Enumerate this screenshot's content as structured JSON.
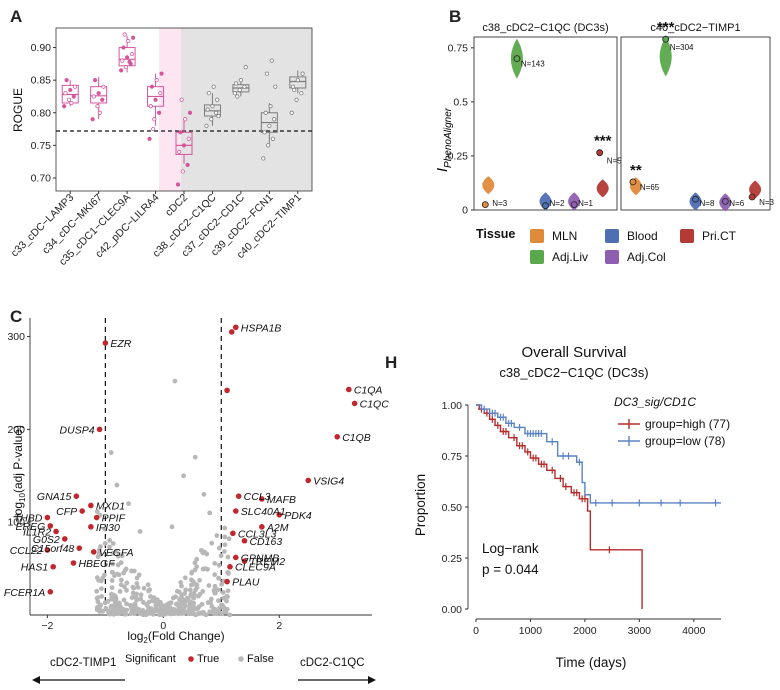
{
  "figure": {
    "panel_labels": [
      "A",
      "B",
      "C",
      "H"
    ]
  },
  "colors": {
    "pink": "#d6569e",
    "pink_shade": "#fde6f1",
    "grey_shade": "#e3e3e3",
    "grey_box": "#7b7b7b",
    "MLN": "#e08a3c",
    "Adj.Liv": "#5aa84b",
    "Blood": "#4f6fb3",
    "Adj.Col": "#8e5fb0",
    "Pri.CT": "#b43a35",
    "volcano_sig": "#c1272d",
    "volcano_ns": "#b7b7b7",
    "surv_high": "#b72b2b",
    "surv_low": "#5b84c4"
  },
  "chart_data": [
    {
      "panel": "A",
      "type": "box",
      "ylabel": "ROGUE",
      "ylim": [
        0.68,
        0.93
      ],
      "yticks": [
        "0.70",
        "0.75",
        "0.80",
        "0.85",
        "0.90"
      ],
      "threshold": 0.772,
      "categories": [
        "c33_cDC−LAMP3",
        "c34_cDC−MKI67",
        "c35_cDC1−CLEC9A",
        "c42_pDC−LILRA4",
        "cDC2",
        "c38_cDC2−C1QC",
        "c37_cDC2−CD1C",
        "c39_cDC2−FCN1",
        "c40_cDC2−TIMP1"
      ],
      "groups": [
        "pink",
        "pink",
        "pink",
        "pink",
        "pink",
        "grey",
        "grey",
        "grey",
        "grey"
      ],
      "boxes": [
        {
          "lo": 0.81,
          "q1": 0.815,
          "med": 0.828,
          "q3": 0.842,
          "hi": 0.85,
          "points": [
            0.81,
            0.82,
            0.825,
            0.83,
            0.835,
            0.84,
            0.85,
            0.815
          ]
        },
        {
          "lo": 0.79,
          "q1": 0.815,
          "med": 0.826,
          "q3": 0.84,
          "hi": 0.855,
          "points": [
            0.79,
            0.81,
            0.82,
            0.825,
            0.83,
            0.84,
            0.85,
            0.8
          ]
        },
        {
          "lo": 0.862,
          "q1": 0.872,
          "med": 0.882,
          "q3": 0.9,
          "hi": 0.918,
          "points": [
            0.865,
            0.87,
            0.875,
            0.88,
            0.885,
            0.89,
            0.9,
            0.91,
            0.915,
            0.92,
            0.878
          ]
        },
        {
          "lo": 0.78,
          "q1": 0.81,
          "med": 0.825,
          "q3": 0.84,
          "hi": 0.86,
          "points": [
            0.76,
            0.79,
            0.8,
            0.81,
            0.82,
            0.83,
            0.84,
            0.85,
            0.86,
            0.775
          ]
        },
        {
          "lo": 0.722,
          "q1": 0.736,
          "med": 0.75,
          "q3": 0.77,
          "hi": 0.79,
          "points": [
            0.69,
            0.71,
            0.72,
            0.74,
            0.75,
            0.76,
            0.77,
            0.79,
            0.8,
            0.82
          ]
        },
        {
          "lo": 0.78,
          "q1": 0.795,
          "med": 0.803,
          "q3": 0.812,
          "hi": 0.83,
          "points": [
            0.78,
            0.79,
            0.8,
            0.805,
            0.81,
            0.82,
            0.83,
            0.84,
            0.795
          ]
        },
        {
          "lo": 0.825,
          "q1": 0.832,
          "med": 0.838,
          "q3": 0.843,
          "hi": 0.85,
          "points": [
            0.83,
            0.835,
            0.84,
            0.845,
            0.85,
            0.87,
            0.825
          ]
        },
        {
          "lo": 0.752,
          "q1": 0.77,
          "med": 0.785,
          "q3": 0.8,
          "hi": 0.815,
          "points": [
            0.73,
            0.75,
            0.76,
            0.77,
            0.78,
            0.79,
            0.8,
            0.81,
            0.84,
            0.86,
            0.88
          ]
        },
        {
          "lo": 0.83,
          "q1": 0.838,
          "med": 0.848,
          "q3": 0.855,
          "hi": 0.865,
          "points": [
            0.8,
            0.82,
            0.83,
            0.84,
            0.85,
            0.86,
            0.835
          ]
        }
      ]
    },
    {
      "panel": "B",
      "type": "violin",
      "ylabel_main": "I",
      "ylabel_sub": "PhenoAligner",
      "ylim": [
        0,
        0.8
      ],
      "yticks": [
        "0",
        "0.25",
        "0.5",
        "0.75"
      ],
      "tissues": [
        "MLN",
        "Adj.Liv",
        "Blood",
        "Adj.Col",
        "Pri.CT"
      ],
      "facets": [
        {
          "title": "c38_cDC2−C1QC (DC3s)",
          "groups": [
            {
              "tissue": "MLN",
              "center": 0.115,
              "n": "N=3",
              "point": 0.025,
              "sig": ""
            },
            {
              "tissue": "Adj.Liv",
              "center": 0.7,
              "n": "N=143",
              "point": 0.7,
              "sig": ""
            },
            {
              "tissue": "Blood",
              "center": 0.04,
              "n": "N=2",
              "point": 0.02,
              "sig": ""
            },
            {
              "tissue": "Adj.Col",
              "center": 0.04,
              "n": "N=1",
              "point": 0.025,
              "sig": ""
            },
            {
              "tissue": "Pri.CT",
              "center": 0.1,
              "n": "N=54",
              "point": 0.265,
              "sig": "***"
            }
          ]
        },
        {
          "title": "c40_cDC2−TIMP1",
          "groups": [
            {
              "tissue": "MLN",
              "center": 0.11,
              "n": "N=65",
              "point": 0.13,
              "sig": "**"
            },
            {
              "tissue": "Adj.Liv",
              "center": 0.71,
              "n": "N=304",
              "point": 0.79,
              "sig": "***"
            },
            {
              "tissue": "Blood",
              "center": 0.04,
              "n": "N=8",
              "point": 0.05,
              "sig": ""
            },
            {
              "tissue": "Adj.Col",
              "center": 0.035,
              "n": "N=6",
              "point": 0.04,
              "sig": ""
            },
            {
              "tissue": "Pri.CT",
              "center": 0.095,
              "n": "N=3",
              "point": 0.06,
              "sig": ""
            }
          ]
        }
      ],
      "legend_title": "Tissue"
    },
    {
      "panel": "C",
      "type": "scatter",
      "xlabel_prefix": "log",
      "xlabel_sub": "2",
      "xlabel_suffix": "(Fold Change)",
      "ylabel_prefix": "−log",
      "ylabel_sub": "10",
      "ylabel_suffix": "(adj P-value)",
      "xlim": [
        -2.3,
        3.6
      ],
      "ylim": [
        0,
        320
      ],
      "xticks": [
        "−2",
        "0",
        "2"
      ],
      "yticks": [
        "100",
        "200",
        "300"
      ],
      "cutoff_x": [
        -1,
        1
      ],
      "legend_title": "Significant",
      "legend_true": "True",
      "legend_false": "False",
      "left_arrow_label": "cDC2-TIMP1",
      "right_arrow_label": "cDC2-C1QC",
      "significant_points": [
        {
          "x": 1.25,
          "y": 310,
          "label": "HSPA1B",
          "side": "r"
        },
        {
          "x": 1.18,
          "y": 305,
          "label": "",
          "side": "r"
        },
        {
          "x": 3.2,
          "y": 243,
          "label": "C1QA",
          "side": "r"
        },
        {
          "x": 3.3,
          "y": 228,
          "label": "C1QC",
          "side": "r"
        },
        {
          "x": 3.0,
          "y": 192,
          "label": "C1QB",
          "side": "r"
        },
        {
          "x": 1.1,
          "y": 242,
          "label": "",
          "side": "r"
        },
        {
          "x": 2.5,
          "y": 145,
          "label": "VSIG4",
          "side": "r"
        },
        {
          "x": 1.3,
          "y": 128,
          "label": "CCL3",
          "side": "r"
        },
        {
          "x": 1.7,
          "y": 125,
          "label": "MAFB",
          "side": "r"
        },
        {
          "x": 1.25,
          "y": 112,
          "label": "SLC40A1",
          "side": "r"
        },
        {
          "x": 2.0,
          "y": 108,
          "label": "PDK4",
          "side": "r"
        },
        {
          "x": 1.7,
          "y": 95,
          "label": "A2M",
          "side": "r"
        },
        {
          "x": 1.2,
          "y": 88,
          "label": "CCL3L3",
          "side": "r"
        },
        {
          "x": 1.4,
          "y": 80,
          "label": "CD163",
          "side": "r"
        },
        {
          "x": 1.25,
          "y": 62,
          "label": "GPNMB",
          "side": "r"
        },
        {
          "x": 1.4,
          "y": 58,
          "label": "TREM2",
          "side": "r"
        },
        {
          "x": 1.15,
          "y": 52,
          "label": "CLEC9A",
          "side": "r"
        },
        {
          "x": 1.1,
          "y": 36,
          "label": "PLAU",
          "side": "r"
        },
        {
          "x": -1.0,
          "y": 293,
          "label": "EZR",
          "side": "r"
        },
        {
          "x": -1.1,
          "y": 200,
          "label": "DUSP4",
          "side": "l"
        },
        {
          "x": -1.5,
          "y": 128,
          "label": "GNA15",
          "side": "l"
        },
        {
          "x": -1.25,
          "y": 118,
          "label": "MXD1",
          "side": "r"
        },
        {
          "x": -1.4,
          "y": 112,
          "label": "CFP",
          "side": "l"
        },
        {
          "x": -1.15,
          "y": 105,
          "label": "PPIF",
          "side": "r"
        },
        {
          "x": -1.25,
          "y": 95,
          "label": "IFI30",
          "side": "r"
        },
        {
          "x": -2.0,
          "y": 105,
          "label": "THBD",
          "side": "l"
        },
        {
          "x": -1.95,
          "y": 96,
          "label": "EREG",
          "side": "l"
        },
        {
          "x": -1.85,
          "y": 90,
          "label": "IL1R2",
          "side": "l"
        },
        {
          "x": -1.7,
          "y": 82,
          "label": "G0S2",
          "side": "l"
        },
        {
          "x": -1.45,
          "y": 72,
          "label": "C15orf48",
          "side": "l"
        },
        {
          "x": -1.2,
          "y": 68,
          "label": "VEGFA",
          "side": "r"
        },
        {
          "x": -2.0,
          "y": 70,
          "label": "CCL22",
          "side": "l"
        },
        {
          "x": -1.55,
          "y": 56,
          "label": "HBEGF",
          "side": "r"
        },
        {
          "x": -1.9,
          "y": 52,
          "label": "HAS1",
          "side": "l"
        },
        {
          "x": -1.95,
          "y": 25,
          "label": "FCER1A",
          "side": "l"
        }
      ]
    },
    {
      "panel": "H",
      "type": "line",
      "title": "Overall Survival",
      "subtitle": "c38_cDC2−C1QC (DC3s)",
      "xlabel": "Time (days)",
      "ylabel": "Proportion",
      "xlim": [
        0,
        4500
      ],
      "ylim": [
        0,
        1
      ],
      "xticks": [
        "0",
        "1000",
        "2000",
        "3000",
        "4000"
      ],
      "yticks": [
        "0.00",
        "0.25",
        "0.50",
        "0.75",
        "1.00"
      ],
      "legend_title": "DC3_sig/CD1C",
      "annotation_line1": "Log−rank",
      "annotation_line2": "p = 0.044",
      "series": [
        {
          "name": "group=high (77)",
          "color": "#b72b2b",
          "steps": [
            [
              0,
              1.0
            ],
            [
              60,
              0.98
            ],
            [
              150,
              0.96
            ],
            [
              250,
              0.93
            ],
            [
              350,
              0.9
            ],
            [
              450,
              0.87
            ],
            [
              600,
              0.84
            ],
            [
              750,
              0.8
            ],
            [
              900,
              0.77
            ],
            [
              1000,
              0.74
            ],
            [
              1150,
              0.71
            ],
            [
              1300,
              0.68
            ],
            [
              1450,
              0.64
            ],
            [
              1600,
              0.6
            ],
            [
              1750,
              0.57
            ],
            [
              1900,
              0.54
            ],
            [
              2050,
              0.48
            ],
            [
              2100,
              0.29
            ],
            [
              3050,
              0.0
            ]
          ],
          "censor": [
            [
              100,
              0.98
            ],
            [
              200,
              0.96
            ],
            [
              300,
              0.93
            ],
            [
              400,
              0.9
            ],
            [
              500,
              0.87
            ],
            [
              550,
              0.87
            ],
            [
              700,
              0.84
            ],
            [
              800,
              0.8
            ],
            [
              850,
              0.8
            ],
            [
              950,
              0.77
            ],
            [
              1050,
              0.74
            ],
            [
              1100,
              0.74
            ],
            [
              1200,
              0.71
            ],
            [
              1250,
              0.71
            ],
            [
              1400,
              0.68
            ],
            [
              1550,
              0.64
            ],
            [
              1650,
              0.6
            ],
            [
              1800,
              0.57
            ],
            [
              1850,
              0.57
            ],
            [
              1950,
              0.54
            ],
            [
              2000,
              0.54
            ],
            [
              2450,
              0.29
            ]
          ]
        },
        {
          "name": "group=low (78)",
          "color": "#5b84c4",
          "steps": [
            [
              0,
              1.0
            ],
            [
              100,
              0.98
            ],
            [
              250,
              0.96
            ],
            [
              400,
              0.94
            ],
            [
              550,
              0.91
            ],
            [
              700,
              0.89
            ],
            [
              900,
              0.86
            ],
            [
              1300,
              0.82
            ],
            [
              1500,
              0.75
            ],
            [
              1850,
              0.72
            ],
            [
              1950,
              0.62
            ],
            [
              2000,
              0.56
            ],
            [
              2100,
              0.52
            ],
            [
              4500,
              0.52
            ]
          ],
          "censor": [
            [
              150,
              0.98
            ],
            [
              300,
              0.96
            ],
            [
              350,
              0.96
            ],
            [
              450,
              0.94
            ],
            [
              500,
              0.94
            ],
            [
              600,
              0.91
            ],
            [
              650,
              0.91
            ],
            [
              800,
              0.89
            ],
            [
              950,
              0.86
            ],
            [
              1000,
              0.86
            ],
            [
              1050,
              0.86
            ],
            [
              1100,
              0.86
            ],
            [
              1150,
              0.86
            ],
            [
              1200,
              0.86
            ],
            [
              1400,
              0.82
            ],
            [
              1600,
              0.75
            ],
            [
              1700,
              0.75
            ],
            [
              1900,
              0.72
            ],
            [
              2200,
              0.52
            ],
            [
              2500,
              0.52
            ],
            [
              3000,
              0.52
            ],
            [
              3400,
              0.52
            ],
            [
              3750,
              0.52
            ],
            [
              4400,
              0.52
            ]
          ]
        }
      ]
    }
  ]
}
